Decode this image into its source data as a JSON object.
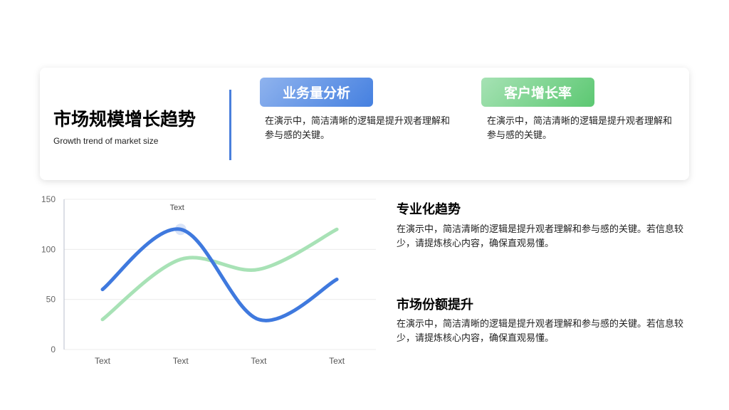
{
  "header": {
    "title": "市场规模增长趋势",
    "subtitle": "Growth trend of market size"
  },
  "cards": [
    {
      "badge": "业务量分析",
      "text": "在演示中，简洁清晰的逻辑是提升观者理解和参与感的关键。",
      "color": "#4a7fdc"
    },
    {
      "badge": "客户增长率",
      "text": "在演示中，简洁清晰的逻辑是提升观者理解和参与感的关键。",
      "color": "#5cc872"
    }
  ],
  "points": [
    {
      "title": "专业化趋势",
      "text": "在演示中，简洁清晰的逻辑是提升观者理解和参与感的关键。若信息较少，请提炼核心内容，确保直观易懂。"
    },
    {
      "title": "市场份额提升",
      "text": "在演示中，简洁清晰的逻辑是提升观者理解和参与感的关键。若信息较少，请提炼核心内容，确保直观易懂。"
    }
  ],
  "chart_data": {
    "type": "line",
    "categories": [
      "Text",
      "Text",
      "Text",
      "Text"
    ],
    "series": [
      {
        "values": [
          60,
          120,
          30,
          70
        ],
        "color": "#3f79de"
      },
      {
        "values": [
          30,
          90,
          80,
          120
        ],
        "color": "#a8e2b6"
      }
    ],
    "annotation": {
      "label": "Text",
      "series": 0,
      "index": 1
    },
    "ylim": [
      0,
      150
    ],
    "yticks": [
      0,
      50,
      100,
      150
    ],
    "grid": true,
    "smooth": true
  }
}
